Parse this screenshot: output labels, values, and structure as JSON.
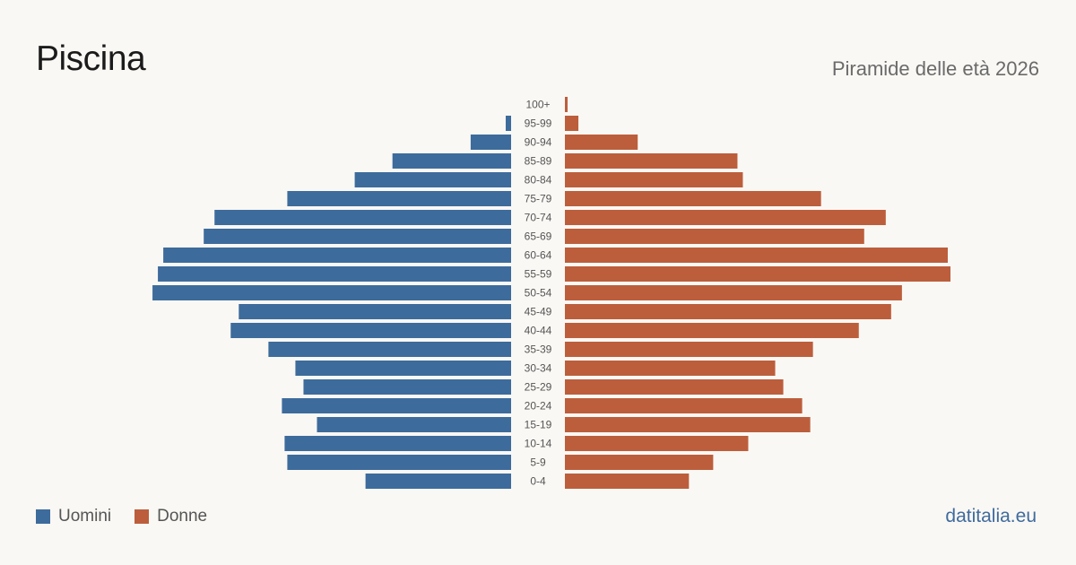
{
  "header": {
    "title": "Piscina",
    "subtitle": "Piramide delle età 2026"
  },
  "legend": {
    "men_label": "Uomini",
    "women_label": "Donne"
  },
  "footer": {
    "source": "datitalia.eu"
  },
  "colors": {
    "men": "#3d6b9c",
    "women": "#bc5e3c",
    "background": "#faf8f4"
  },
  "chart_data": {
    "type": "bar",
    "orientation": "horizontal-pyramid",
    "categories": [
      "100+",
      "95-99",
      "90-94",
      "85-89",
      "80-84",
      "75-79",
      "70-74",
      "65-69",
      "60-64",
      "55-59",
      "50-54",
      "45-49",
      "40-44",
      "35-39",
      "30-34",
      "25-29",
      "20-24",
      "15-19",
      "10-14",
      "5-9",
      "0-4"
    ],
    "series": [
      {
        "name": "Uomini",
        "values": [
          0,
          2,
          15,
          44,
          58,
          83,
          110,
          114,
          129,
          131,
          133,
          101,
          104,
          90,
          80,
          77,
          85,
          72,
          84,
          83,
          54
        ]
      },
      {
        "name": "Donne",
        "values": [
          1,
          5,
          27,
          64,
          66,
          95,
          119,
          111,
          142,
          143,
          125,
          121,
          109,
          92,
          78,
          81,
          88,
          91,
          68,
          55,
          46
        ]
      }
    ],
    "legend_position": "bottom-left",
    "grid": false
  }
}
